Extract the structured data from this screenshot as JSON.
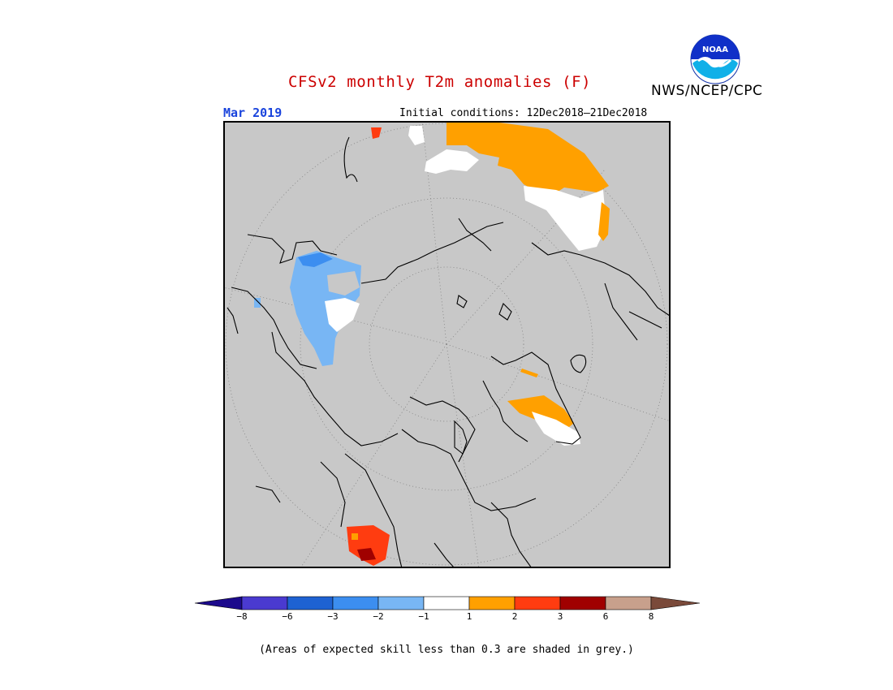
{
  "title": "CFSv2 monthly T2m anomalies (F)",
  "organization": "NWS/NCEP/CPC",
  "logo_text": "NOAA",
  "month_label": "Mar 2019",
  "initial_conditions": "Initial conditions: 12Dec2018–21Dec2018",
  "footnote": "(Areas of expected skill less than 0.3 are shaded in grey.)",
  "colors": {
    "title": "#cc0000",
    "month": "#1a44dd",
    "map_background": "#c8c8c8",
    "low_skill_grey": "#c8c8c8"
  },
  "colorbar": {
    "left_arrow_color": "#1c0a8c",
    "right_arrow_color": "#7a4a3a",
    "bins": [
      {
        "color": "#4a3ad0"
      },
      {
        "color": "#1e62d2"
      },
      {
        "color": "#3c8ef0"
      },
      {
        "color": "#78b6f4"
      },
      {
        "color": "#ffffff"
      },
      {
        "color": "#ffa000"
      },
      {
        "color": "#ff3c10"
      },
      {
        "color": "#a00000"
      },
      {
        "color": "#c8a08c"
      }
    ],
    "tick_labels": [
      "−8",
      "−6",
      "−3",
      "−2",
      "−1",
      "1",
      "2",
      "3",
      "6",
      "8"
    ]
  },
  "map_icons": {
    "projection": "north-polar-stereographic",
    "coastline_color": "#000000",
    "graticule_style": "dotted"
  }
}
